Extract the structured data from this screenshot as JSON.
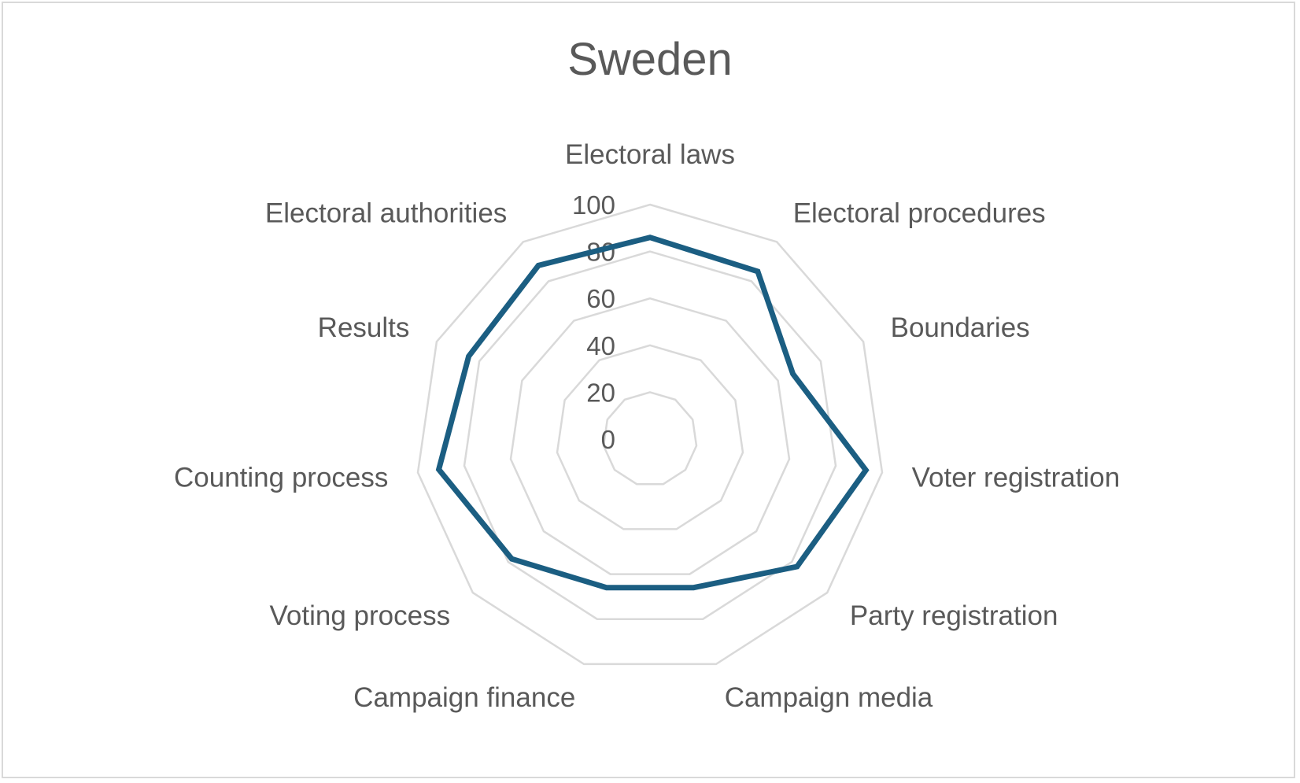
{
  "chart_data": {
    "type": "radar",
    "title": "Sweden",
    "categories": [
      "Electoral laws",
      "Electoral procedures",
      "Boundaries",
      "Voter registration",
      "Party registration",
      "Campaign media",
      "Campaign finance",
      "Voting process",
      "Counting process",
      "Results",
      "Electoral authorities"
    ],
    "series": [
      {
        "values": [
          86,
          85,
          67,
          93,
          83,
          66,
          66,
          78,
          91,
          85,
          88
        ]
      }
    ],
    "ylim": [
      0,
      100
    ],
    "ticks": [
      0,
      20,
      40,
      60,
      80,
      100
    ],
    "grid": true,
    "colors": {
      "series": "#1b5e82",
      "grid": "#d9d9d9",
      "text": "#595959"
    }
  }
}
